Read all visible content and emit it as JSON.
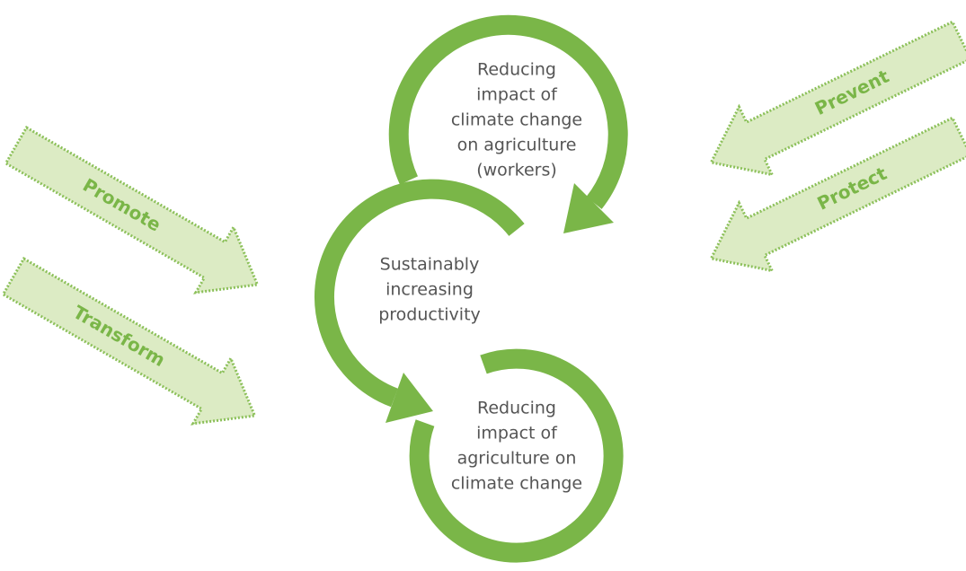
{
  "nodes": [
    {
      "lines": [
        "Reducing",
        "impact of",
        "climate change",
        "on agriculture",
        "(workers)"
      ]
    },
    {
      "lines": [
        "Sustainably",
        "increasing",
        "productivity"
      ]
    },
    {
      "lines": [
        "Reducing",
        "impact of",
        "agriculture on",
        "climate change"
      ]
    }
  ],
  "arrows": [
    {
      "label": "Promote"
    },
    {
      "label": "Transform"
    },
    {
      "label": "Prevent"
    },
    {
      "label": "Protect"
    }
  ]
}
